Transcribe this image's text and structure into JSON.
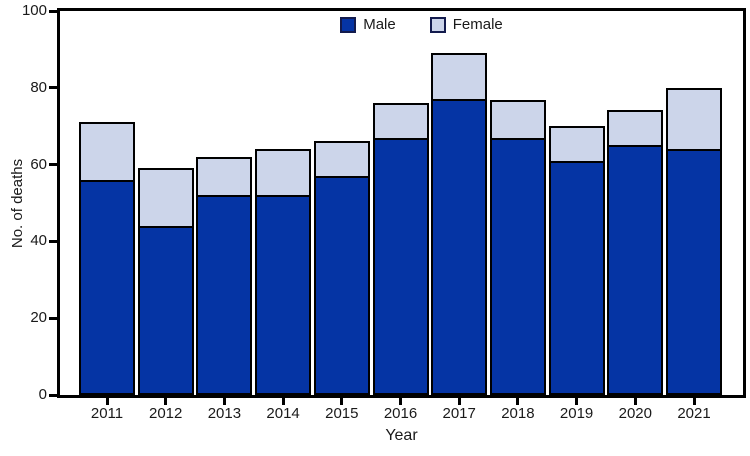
{
  "chart_data": {
    "type": "bar",
    "stacked": true,
    "title": "",
    "xlabel": "Year",
    "ylabel": "No. of deaths",
    "categories": [
      "2011",
      "2012",
      "2013",
      "2014",
      "2015",
      "2016",
      "2017",
      "2018",
      "2019",
      "2020",
      "2021"
    ],
    "series": [
      {
        "name": "Male",
        "color": "#0534a4",
        "values": [
          56,
          44,
          52,
          52,
          57,
          67,
          77,
          67,
          61,
          65,
          64
        ]
      },
      {
        "name": "Female",
        "color": "#ccd5ea",
        "values": [
          15,
          15,
          10,
          12,
          9,
          9,
          12,
          10,
          9,
          9,
          16
        ]
      }
    ],
    "ylim": [
      0,
      100
    ],
    "yticks": [
      0,
      20,
      40,
      60,
      80,
      100
    ],
    "grid": false,
    "legend_position": "top-center",
    "bar_border_color": "#000000",
    "frame_color": "#000000",
    "background_color": "#ffffff"
  }
}
